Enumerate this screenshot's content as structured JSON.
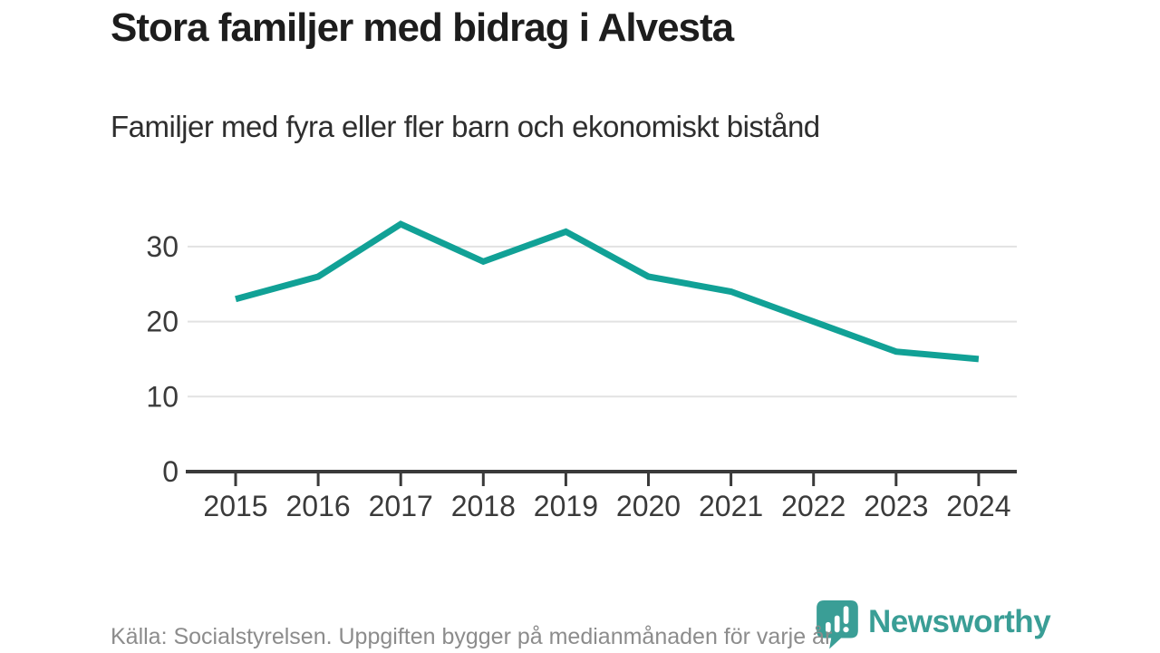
{
  "header": {
    "title": "Stora familjer med bidrag i Alvesta",
    "subtitle": "Familjer med fyra eller fler barn och ekonomiskt bistånd"
  },
  "chart_data": {
    "type": "line",
    "title": "Stora familjer med bidrag i Alvesta",
    "subtitle": "Familjer med fyra eller fler barn och ekonomiskt bistånd",
    "categories": [
      "2015",
      "2016",
      "2017",
      "2018",
      "2019",
      "2020",
      "2021",
      "2022",
      "2023",
      "2024"
    ],
    "values": [
      23,
      26,
      33,
      28,
      32,
      26,
      24,
      20,
      16,
      15
    ],
    "xlabel": "",
    "ylabel": "",
    "ylim": [
      0,
      35
    ],
    "yticks": [
      0,
      10,
      20,
      30
    ],
    "grid": "horizontal gridlines at 10, 20, 30",
    "legend_position": "none",
    "line_color": "#11a196"
  },
  "footer": {
    "source": "Källa: Socialstyrelsen. Uppgiften bygger på medianmånaden för varje år",
    "brand": "Newsworthy"
  },
  "colors": {
    "accent_teal": "#11a196",
    "brand_teal": "#3a9e96",
    "title_text": "#1d1d1d",
    "axis_text": "#3a3a3a",
    "gridline": "#e2e2e2",
    "axis_line": "#3a3a3a",
    "muted_text": "#8c8c8c",
    "background": "#ffffff"
  }
}
